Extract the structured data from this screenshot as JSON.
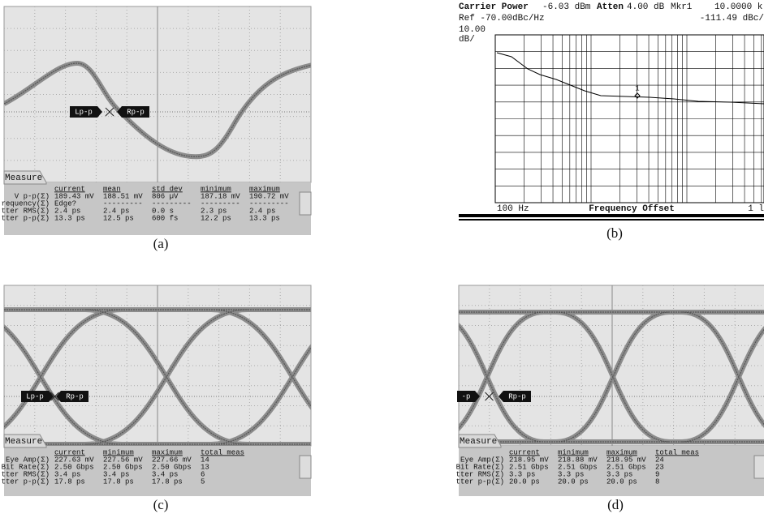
{
  "panels": [
    {
      "caption": "(a)",
      "tab": "Measure",
      "markers": [
        "Lp-p",
        "Rp-p"
      ],
      "table": {
        "headers": [
          "current",
          "mean",
          "std dev",
          "minimum",
          "maximum"
        ],
        "rows": [
          [
            "V p-p(Σ)",
            "189.43 mV",
            "188.51 mV",
            "806 µV",
            "187.18 mV",
            "190.72 mV"
          ],
          [
            "requency(Σ)",
            "Edge?",
            "---------",
            "---------",
            "---------",
            "---------"
          ],
          [
            "tter RMS(Σ)",
            "2.4 ps",
            "2.4 ps",
            "0.0 s",
            "2.3 ps",
            "2.4 ps"
          ],
          [
            "tter p-p(Σ)",
            "13.3 ps",
            "12.5 ps",
            "600 fs",
            "12.2 ps",
            "13.3 ps"
          ]
        ]
      }
    },
    {
      "caption": "(b)",
      "header": {
        "carrier_label": "Carrier Power",
        "carrier_value": "-6.03 dBm",
        "atten_label": "Atten",
        "atten_value": "4.00 dB",
        "marker_label": "Mkr1",
        "marker_freq": "10.0000 k",
        "ref": "Ref -70.00dBc/Hz",
        "marker_level": "-111.49 dBc/",
        "scale": "10.00",
        "scale_unit": "dB/"
      },
      "x_start": "100 Hz",
      "x_label": "Frequency Offset",
      "x_end": "1 l",
      "marker_id": "1"
    },
    {
      "caption": "(c)",
      "tab": "Measure",
      "markers": [
        "Lp-p",
        "Rp-p"
      ],
      "table": {
        "headers": [
          "current",
          "minimum",
          "maximum",
          "total meas"
        ],
        "rows": [
          [
            "Eye Amp(Σ)",
            "227.63 mV",
            "227.56 mV",
            "227.66 mV",
            "14"
          ],
          [
            "Bit Rate(Σ)",
            "2.50 Gbps",
            "2.50 Gbps",
            "2.50 Gbps",
            "13"
          ],
          [
            "tter RMS(Σ)",
            "3.4 ps",
            "3.4 ps",
            "3.4 ps",
            "6"
          ],
          [
            "tter p-p(Σ)",
            "17.8 ps",
            "17.8 ps",
            "17.8 ps",
            "5"
          ]
        ]
      }
    },
    {
      "caption": "(d)",
      "tab": "Measure",
      "markers": [
        "-p",
        "Rp-p"
      ],
      "table": {
        "headers": [
          "current",
          "minimum",
          "maximum",
          "total meas"
        ],
        "rows": [
          [
            "Eye Amp(Σ)",
            "218.95 mV",
            "218.88 mV",
            "218.95 mV",
            "24"
          ],
          [
            "Bit Rate(Σ)",
            "2.51 Gbps",
            "2.51 Gbps",
            "2.51 Gbps",
            "23"
          ],
          [
            "tter RMS(Σ)",
            "3.3 ps",
            "3.3 ps",
            "3.3 ps",
            "9"
          ],
          [
            "tter p-p(Σ)",
            "20.0 ps",
            "20.0 ps",
            "20.0 ps",
            "8"
          ]
        ]
      }
    }
  ]
}
